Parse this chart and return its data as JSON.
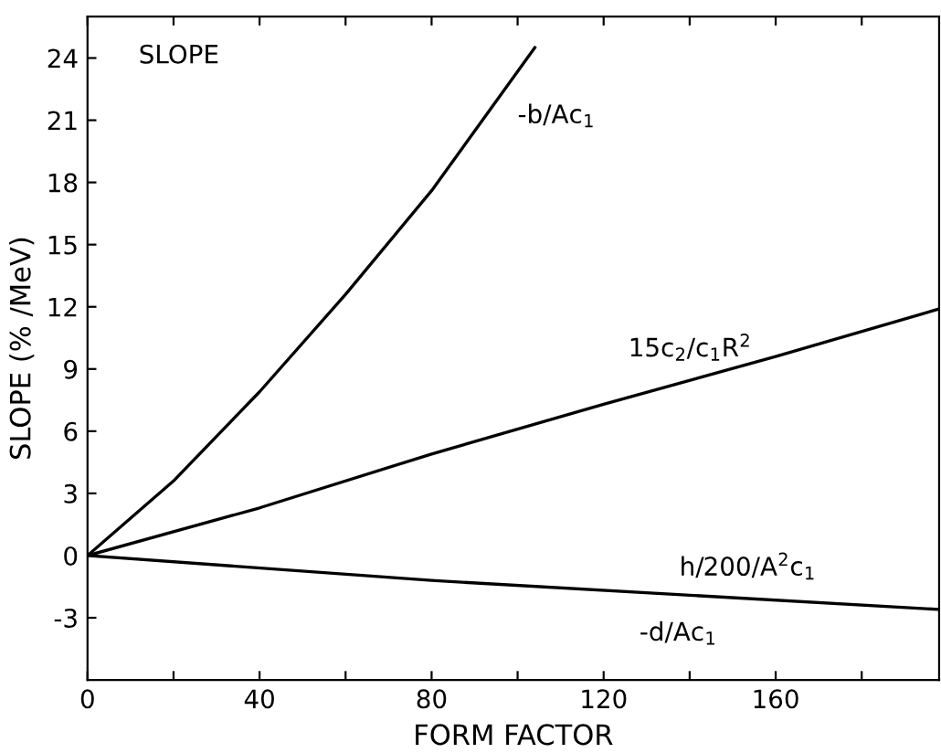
{
  "chart_data": {
    "type": "line",
    "xlabel": "FORM FACTOR",
    "ylabel": "SLOPE (% /MeV)",
    "series": [
      {
        "color": "#000000",
        "x": [
          0,
          20,
          40,
          60,
          80,
          104
        ],
        "values": [
          0,
          3.6,
          7.9,
          12.6,
          17.6,
          24.5
        ]
      },
      {
        "color": "#000000",
        "x": [
          0,
          40,
          80,
          120,
          160,
          198
        ],
        "values": [
          0,
          2.3,
          4.9,
          7.3,
          9.6,
          11.9
        ]
      },
      {
        "color": "#000000",
        "x": [
          0,
          80,
          198
        ],
        "values": [
          0,
          -1.2,
          -2.6
        ]
      }
    ],
    "annotations": [
      "SLOPE",
      "-b/Ac$_{1}$",
      "15c$_{2}$/c$_{1}$R$^{2}$",
      "h/200/A$^{2}$c$_{1}$",
      "-d/Ac$_{1}$"
    ],
    "xlim": [
      0,
      198
    ],
    "ylim": [
      -6,
      26
    ],
    "xticks": [
      0,
      {
        "value": 20,
        "label": null
      },
      40,
      {
        "value": 60,
        "label": null
      },
      80,
      {
        "value": 100,
        "label": null
      },
      120,
      {
        "value": 140,
        "label": null
      },
      160,
      {
        "value": 180,
        "label": null
      }
    ],
    "yticks": [
      -3,
      0,
      3,
      6,
      9,
      12,
      15,
      18,
      21,
      24
    ],
    "grid": false,
    "legend": false,
    "marker": "none",
    "line_style": "solid"
  }
}
